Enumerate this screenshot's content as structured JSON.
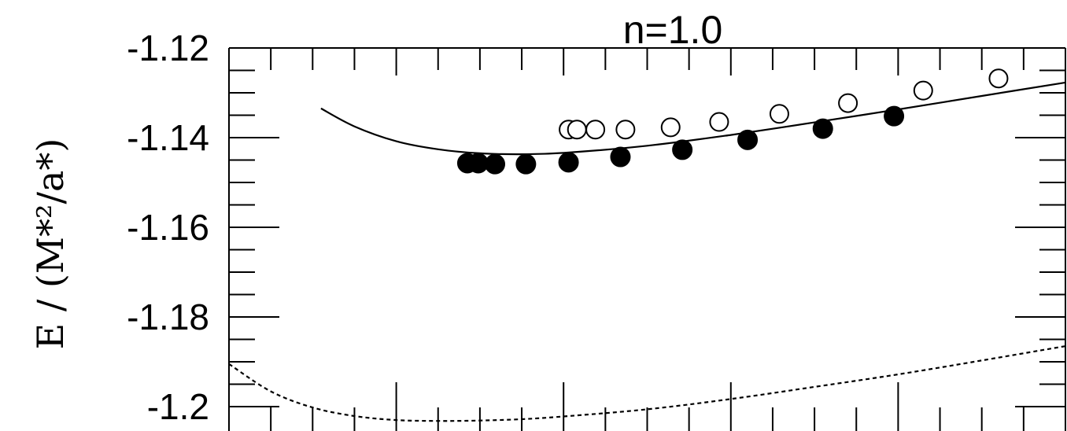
{
  "chart_data": {
    "type": "scatter",
    "title": "n=1.0",
    "ylabel": "E / (M*²/a*)",
    "xlabel": "",
    "ylim": [
      -1.2,
      -1.12
    ],
    "xlim": [
      0,
      10
    ],
    "y_ticks": [
      -1.12,
      -1.14,
      -1.16,
      -1.18,
      -1.2
    ],
    "y_tick_labels": [
      "-1.12",
      "-1.14",
      "-1.16",
      "-1.18",
      "-1.2"
    ],
    "grid": false,
    "series": [
      {
        "marker": "filled-circle",
        "color": "#000000",
        "x": [
          2.85,
          2.98,
          3.18,
          3.55,
          4.06,
          4.68,
          5.42,
          6.2,
          7.1,
          7.95
        ],
        "y": [
          -1.1457,
          -1.1457,
          -1.1459,
          -1.1459,
          -1.1455,
          -1.1443,
          -1.1427,
          -1.1405,
          -1.138,
          -1.1352
        ]
      },
      {
        "marker": "open-circle",
        "color": "#000000",
        "x": [
          4.06,
          4.16,
          4.38,
          4.74,
          5.28,
          5.86,
          6.58,
          7.4,
          8.3,
          9.2
        ],
        "y": [
          -1.1382,
          -1.1382,
          -1.1382,
          -1.1382,
          -1.1377,
          -1.1365,
          -1.1347,
          -1.1323,
          -1.1295,
          -1.1268
        ]
      },
      {
        "style": "solid-line",
        "color": "#000000",
        "x": [
          1.1,
          1.5,
          2.0,
          2.5,
          3.0,
          3.5,
          4.0,
          5.0,
          6.0,
          7.0,
          8.0,
          9.0,
          10.0
        ],
        "y": [
          -1.1335,
          -1.1375,
          -1.1408,
          -1.1426,
          -1.1435,
          -1.1437,
          -1.1434,
          -1.1418,
          -1.1394,
          -1.1366,
          -1.1337,
          -1.1307,
          -1.1277
        ]
      },
      {
        "style": "dotted-line",
        "color": "#000000",
        "x": [
          0.0,
          0.5,
          1.0,
          1.5,
          2.0,
          2.5,
          3.0,
          3.5,
          4.0,
          5.0,
          6.0,
          7.0,
          8.0,
          9.0,
          10.0
        ],
        "y": [
          -1.1905,
          -1.1966,
          -1.2002,
          -1.2021,
          -1.203,
          -1.2032,
          -1.2031,
          -1.2028,
          -1.2022,
          -1.2006,
          -1.1983,
          -1.1956,
          -1.1928,
          -1.1897,
          -1.1865
        ]
      }
    ]
  }
}
